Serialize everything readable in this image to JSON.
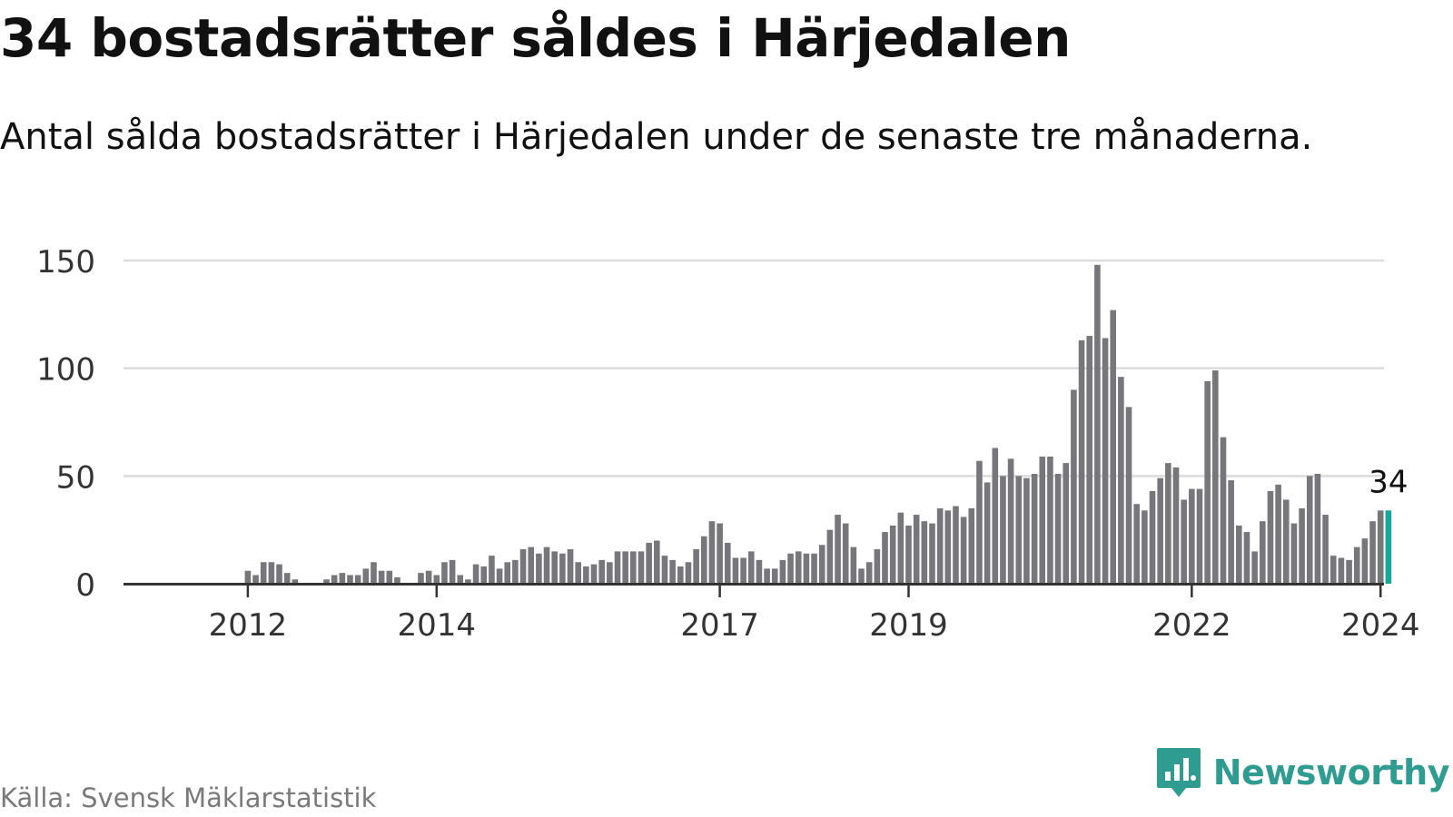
{
  "title": "34 bostadsrätter såldes i Härjedalen",
  "subtitle": "Antal sålda bostadsrätter i Härjedalen under de senaste tre månaderna.",
  "source": "Källa: Svensk Mäklarstatistik",
  "brand": "Newsworthy",
  "colors": {
    "bar": "#77767b",
    "highlight": "#16a89b",
    "grid": "#dcdcdc",
    "axis": "#333333",
    "brand": "#2f9c92"
  },
  "chart_data": {
    "type": "bar",
    "series_name": "Antal sålda bostadsrätter",
    "start": "2011-01",
    "interval": "month",
    "ylim": [
      0,
      160
    ],
    "yticks": [
      0,
      50,
      100,
      150
    ],
    "xticks": [
      {
        "label": "2012",
        "index": 8
      },
      {
        "label": "2014",
        "index": 32
      },
      {
        "label": "2017",
        "index": 68
      },
      {
        "label": "2019",
        "index": 92
      },
      {
        "label": "2022",
        "index": 128
      },
      {
        "label": "2024",
        "index": 152
      }
    ],
    "highlight_label": "34",
    "values": [
      0,
      0,
      0,
      0,
      0,
      0,
      0,
      0,
      6,
      4,
      10,
      10,
      9,
      5,
      2,
      0,
      0,
      0,
      2,
      4,
      5,
      4,
      4,
      7,
      10,
      6,
      6,
      3,
      0,
      0,
      5,
      6,
      4,
      10,
      11,
      4,
      2,
      9,
      8,
      13,
      7,
      10,
      11,
      16,
      17,
      14,
      17,
      15,
      14,
      16,
      10,
      8,
      9,
      11,
      10,
      15,
      15,
      15,
      15,
      19,
      20,
      13,
      11,
      8,
      10,
      16,
      22,
      29,
      28,
      19,
      12,
      12,
      15,
      11,
      7,
      7,
      11,
      14,
      15,
      14,
      14,
      18,
      25,
      32,
      28,
      17,
      7,
      10,
      16,
      24,
      27,
      33,
      27,
      32,
      29,
      28,
      35,
      34,
      36,
      31,
      35,
      57,
      47,
      63,
      50,
      58,
      50,
      49,
      51,
      59,
      59,
      51,
      56,
      90,
      113,
      115,
      148,
      114,
      127,
      96,
      82,
      37,
      34,
      43,
      49,
      56,
      54,
      39,
      44,
      44,
      94,
      99,
      68,
      48,
      27,
      24,
      15,
      29,
      43,
      46,
      39,
      28,
      35,
      50,
      51,
      32,
      13,
      12,
      11,
      17,
      21,
      29,
      34,
      34
    ]
  }
}
